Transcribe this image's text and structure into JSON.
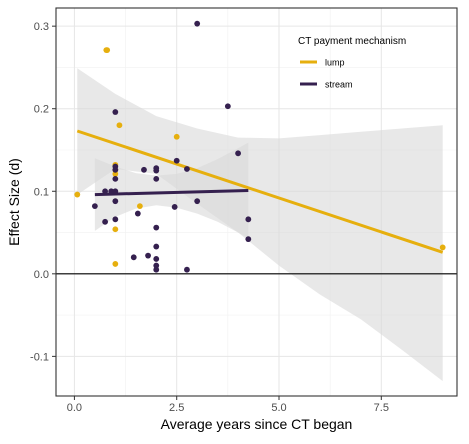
{
  "chart_data": {
    "type": "scatter",
    "title": "",
    "xlabel": "Average years since CT began",
    "ylabel": "Effect Size (d)",
    "xlim": [
      -0.45,
      9.35
    ],
    "ylim": [
      -0.148,
      0.322
    ],
    "x_ticks": [
      0,
      2.5,
      5,
      7.5
    ],
    "x_tick_labels": [
      "0.0",
      "2.5",
      "5.0",
      "7.5"
    ],
    "y_ticks": [
      -0.1,
      0,
      0.1,
      0.2,
      0.3
    ],
    "y_tick_labels": [
      "-0.1",
      "0.0",
      "0.1",
      "0.2",
      "0.3"
    ],
    "grid": true,
    "reference_line_y": 0,
    "legend": {
      "title": "CT payment mechanism",
      "position": "top-right-inside",
      "entries": [
        "lump",
        "stream"
      ]
    },
    "colors": {
      "lump": "#E6AF0E",
      "stream": "#35204F",
      "ribbon": "#D9D9D9",
      "reference": "#000000"
    },
    "series": [
      {
        "name": "lump",
        "points": [
          [
            0.07,
            0.096
          ],
          [
            0.78,
            0.271
          ],
          [
            0.8,
            0.271
          ],
          [
            1.0,
            0.132
          ],
          [
            1.0,
            0.126
          ],
          [
            1.0,
            0.121
          ],
          [
            1.0,
            0.054
          ],
          [
            1.0,
            0.012
          ],
          [
            1.1,
            0.18
          ],
          [
            1.6,
            0.082
          ],
          [
            2.5,
            0.166
          ],
          [
            9.0,
            0.032
          ]
        ],
        "fit": {
          "x": [
            0.07,
            9.0
          ],
          "y": [
            0.173,
            0.026
          ]
        },
        "ribbon": {
          "x": [
            0.07,
            1.0,
            2.0,
            3.0,
            4.0,
            5.0,
            6.0,
            7.0,
            8.0,
            9.0
          ],
          "lower": [
            0.096,
            0.127,
            0.121,
            0.085,
            0.05,
            0.01,
            -0.025,
            -0.055,
            -0.092,
            -0.13
          ],
          "upper": [
            0.249,
            0.218,
            0.191,
            0.176,
            0.165,
            0.164,
            0.168,
            0.172,
            0.176,
            0.18
          ]
        }
      },
      {
        "name": "stream",
        "points": [
          [
            0.5,
            0.082
          ],
          [
            0.75,
            0.1
          ],
          [
            0.75,
            0.063
          ],
          [
            0.9,
            0.1
          ],
          [
            1.0,
            0.196
          ],
          [
            1.0,
            0.13
          ],
          [
            1.0,
            0.126
          ],
          [
            1.0,
            0.115
          ],
          [
            1.0,
            0.1
          ],
          [
            1.0,
            0.088
          ],
          [
            1.0,
            0.066
          ],
          [
            1.45,
            0.02
          ],
          [
            1.55,
            0.073
          ],
          [
            1.7,
            0.126
          ],
          [
            1.8,
            0.022
          ],
          [
            2.0,
            0.128
          ],
          [
            2.0,
            0.125
          ],
          [
            2.0,
            0.115
          ],
          [
            2.0,
            0.056
          ],
          [
            2.0,
            0.033
          ],
          [
            2.0,
            0.018
          ],
          [
            2.0,
            0.01
          ],
          [
            2.0,
            0.005
          ],
          [
            2.45,
            0.081
          ],
          [
            2.5,
            0.137
          ],
          [
            2.75,
            0.127
          ],
          [
            2.75,
            0.005
          ],
          [
            3.0,
            0.303
          ],
          [
            3.0,
            0.088
          ],
          [
            3.75,
            0.203
          ],
          [
            4.0,
            0.146
          ],
          [
            4.25,
            0.066
          ],
          [
            4.25,
            0.042
          ]
        ],
        "fit": {
          "x": [
            0.5,
            4.25
          ],
          "y": [
            0.096,
            0.101
          ]
        },
        "ribbon": {
          "x": [
            0.5,
            1.0,
            1.5,
            2.0,
            2.5,
            3.0,
            3.5,
            4.0,
            4.25
          ],
          "lower": [
            0.052,
            0.069,
            0.079,
            0.083,
            0.08,
            0.073,
            0.063,
            0.05,
            0.043
          ],
          "upper": [
            0.14,
            0.13,
            0.122,
            0.119,
            0.121,
            0.128,
            0.139,
            0.152,
            0.159
          ]
        }
      }
    ]
  }
}
